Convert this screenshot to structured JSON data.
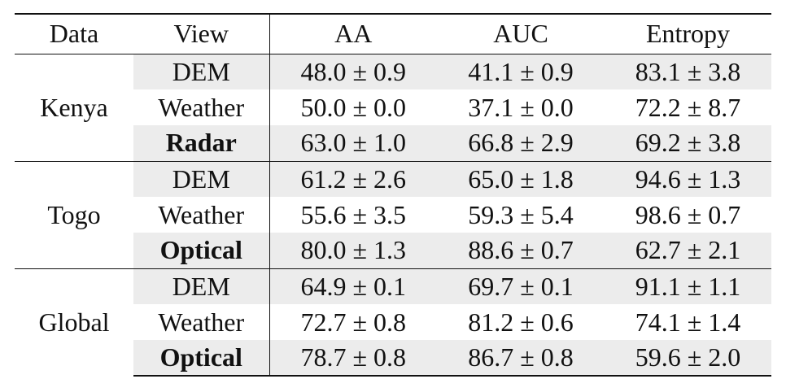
{
  "headers": [
    "Data",
    "View",
    "AA",
    "AUC",
    "Entropy"
  ],
  "groups": [
    {
      "data": "Kenya",
      "rows": [
        {
          "view": "DEM",
          "bold": false,
          "aa": "48.0 ± 0.9",
          "auc": "41.1 ± 0.9",
          "entropy": "83.1 ± 3.8"
        },
        {
          "view": "Weather",
          "bold": false,
          "aa": "50.0 ± 0.0",
          "auc": "37.1 ± 0.0",
          "entropy": "72.2 ± 8.7"
        },
        {
          "view": "Radar",
          "bold": true,
          "aa": "63.0 ± 1.0",
          "auc": "66.8 ± 2.9",
          "entropy": "69.2 ± 3.8"
        }
      ]
    },
    {
      "data": "Togo",
      "rows": [
        {
          "view": "DEM",
          "bold": false,
          "aa": "61.2 ± 2.6",
          "auc": "65.0 ± 1.8",
          "entropy": "94.6 ± 1.3"
        },
        {
          "view": "Weather",
          "bold": false,
          "aa": "55.6 ± 3.5",
          "auc": "59.3 ± 5.4",
          "entropy": "98.6 ± 0.7"
        },
        {
          "view": "Optical",
          "bold": true,
          "aa": "80.0 ± 1.3",
          "auc": "88.6 ± 0.7",
          "entropy": "62.7 ± 2.1"
        }
      ]
    },
    {
      "data": "Global",
      "rows": [
        {
          "view": "DEM",
          "bold": false,
          "aa": "64.9 ± 0.1",
          "auc": "69.7 ± 0.1",
          "entropy": "91.1 ± 1.1"
        },
        {
          "view": "Weather",
          "bold": false,
          "aa": "72.7 ± 0.8",
          "auc": "81.2 ± 0.6",
          "entropy": "74.1 ± 1.4"
        },
        {
          "view": "Optical",
          "bold": true,
          "aa": "78.7 ± 0.8",
          "auc": "86.7 ± 0.8",
          "entropy": "59.6 ± 2.0"
        }
      ]
    }
  ],
  "colors": {
    "shade": "#ececec",
    "rule": "#111111"
  }
}
